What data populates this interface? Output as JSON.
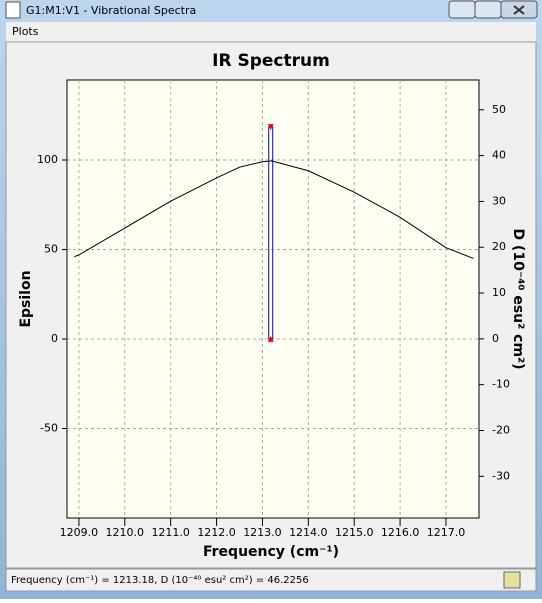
{
  "window": {
    "title": "G1:M1:V1 - Vibrational Spectra",
    "menu": [
      "Plots"
    ],
    "status": "Frequency (cm⁻¹) = 1213.18, D (10⁻⁴⁰ esu² cm²) = 46.2256"
  },
  "chart_data": {
    "type": "line",
    "title": "IR Spectrum",
    "xlabel": "Frequency (cm⁻¹)",
    "ylabel": "Epsilon",
    "y2label": "D (10⁻⁴⁰ esu² cm²)",
    "x": [
      1208.9,
      1209.0,
      1210.0,
      1211.0,
      1212.0,
      1212.5,
      1213.0,
      1213.2,
      1214.0,
      1215.0,
      1216.0,
      1217.0,
      1217.6
    ],
    "series": [
      {
        "color": "#000000",
        "values": [
          46,
          47,
          62,
          77,
          90,
          96,
          99,
          99.5,
          94,
          82,
          68,
          51,
          45
        ]
      }
    ],
    "sticks": {
      "x": [
        1213.18
      ],
      "values": [
        46.2256
      ],
      "axis": "y2",
      "color": "#0000ff",
      "marker_color": "#ff0000"
    },
    "xlim": [
      1208.74,
      1217.72
    ],
    "xticks": [
      {
        "value": 1209,
        "label": "1209.0"
      },
      {
        "value": 1210,
        "label": "1210.0"
      },
      {
        "value": 1211,
        "label": "1211.0"
      },
      {
        "value": 1212,
        "label": "1212.0"
      },
      {
        "value": 1213,
        "label": "1213.0"
      },
      {
        "value": 1214,
        "label": "1214.0"
      },
      {
        "value": 1215,
        "label": "1215.0"
      },
      {
        "value": 1216,
        "label": "1216.0"
      },
      {
        "value": 1217,
        "label": "1217.0"
      }
    ],
    "ylim": [
      -100,
      144.7
    ],
    "yticks": [
      -50,
      0,
      50,
      100
    ],
    "y2lim": [
      -39.1,
      56.5
    ],
    "y2ticks": [
      -30,
      -20,
      -10,
      0,
      10,
      20,
      30,
      40,
      50
    ],
    "grid": true
  }
}
